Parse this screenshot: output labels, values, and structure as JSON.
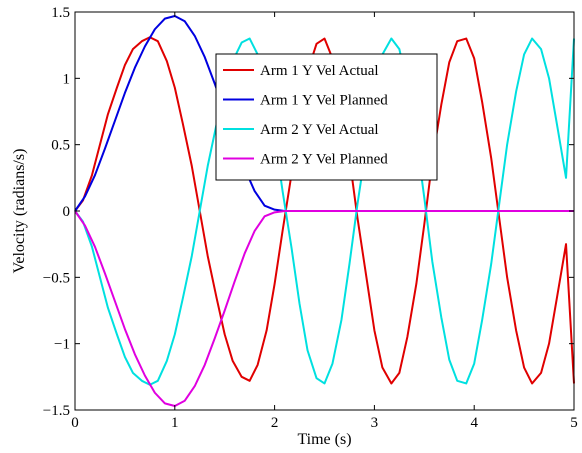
{
  "chart_data": {
    "type": "line",
    "xlabel": "Time (s)",
    "ylabel": "Velocity (radians/s)",
    "xlim": [
      0,
      5
    ],
    "ylim": [
      -1.5,
      1.5
    ],
    "x_ticks": [
      {
        "value": 0,
        "label": "0"
      },
      {
        "value": 1,
        "label": "1"
      },
      {
        "value": 2,
        "label": "2"
      },
      {
        "value": 3,
        "label": "3"
      },
      {
        "value": 4,
        "label": "4"
      },
      {
        "value": 5,
        "label": "5"
      }
    ],
    "y_ticks": [
      {
        "value": -1.5,
        "label": "−1.5"
      },
      {
        "value": -1,
        "label": "−1"
      },
      {
        "value": -0.5,
        "label": "−0.5"
      },
      {
        "value": 0,
        "label": "0"
      },
      {
        "value": 0.5,
        "label": "0.5"
      },
      {
        "value": 1,
        "label": "1"
      },
      {
        "value": 1.5,
        "label": "1.5"
      }
    ],
    "grid": false,
    "legend_position": "top-right",
    "series": [
      {
        "name": "Arm 1 Y Vel Actual",
        "color": "#e00000",
        "x": [
          0,
          0.08,
          0.17,
          0.25,
          0.33,
          0.42,
          0.5,
          0.58,
          0.67,
          0.75,
          0.83,
          0.92,
          1.0,
          1.08,
          1.17,
          1.25,
          1.33,
          1.42,
          1.5,
          1.58,
          1.67,
          1.75,
          1.83,
          1.92,
          2.0,
          2.08,
          2.17,
          2.25,
          2.33,
          2.42,
          2.5,
          2.58,
          2.67,
          2.75,
          2.83,
          2.92,
          3.0,
          3.08,
          3.17,
          3.25,
          3.33,
          3.42,
          3.5,
          3.58,
          3.67,
          3.75,
          3.83,
          3.92,
          4.0,
          4.08,
          4.17,
          4.25,
          4.33,
          4.42,
          4.5,
          4.58,
          4.67,
          4.75,
          4.83,
          4.92,
          5.0
        ],
        "y": [
          0,
          0.08,
          0.27,
          0.5,
          0.73,
          0.93,
          1.1,
          1.22,
          1.28,
          1.31,
          1.28,
          1.13,
          0.93,
          0.66,
          0.34,
          0.0,
          -0.34,
          -0.66,
          -0.93,
          -1.13,
          -1.25,
          -1.28,
          -1.16,
          -0.9,
          -0.55,
          -0.15,
          0.28,
          0.7,
          1.05,
          1.26,
          1.3,
          1.15,
          0.82,
          0.4,
          -0.05,
          -0.5,
          -0.9,
          -1.18,
          -1.3,
          -1.22,
          -0.95,
          -0.55,
          -0.1,
          0.38,
          0.8,
          1.12,
          1.28,
          1.3,
          1.15,
          0.82,
          0.4,
          -0.05,
          -0.5,
          -0.9,
          -1.18,
          -1.3,
          -1.22,
          -1.0,
          -0.65,
          -0.25,
          -1.3
        ]
      },
      {
        "name": "Arm 1 Y Vel Planned",
        "color": "#0000e0",
        "x": [
          0,
          0.1,
          0.2,
          0.3,
          0.4,
          0.5,
          0.6,
          0.7,
          0.8,
          0.9,
          1.0,
          1.1,
          1.2,
          1.3,
          1.4,
          1.5,
          1.6,
          1.7,
          1.8,
          1.9,
          2.0,
          2.1,
          2.5,
          3.0,
          3.5,
          4.0,
          4.5,
          5.0
        ],
        "y": [
          0,
          0.11,
          0.27,
          0.47,
          0.68,
          0.89,
          1.08,
          1.24,
          1.37,
          1.45,
          1.47,
          1.43,
          1.32,
          1.16,
          0.96,
          0.75,
          0.53,
          0.32,
          0.15,
          0.04,
          0.01,
          0,
          0,
          0,
          0,
          0,
          0,
          0
        ]
      },
      {
        "name": "Arm 2 Y Vel Actual",
        "color": "#00e0e0",
        "x": [
          0,
          0.08,
          0.17,
          0.25,
          0.33,
          0.42,
          0.5,
          0.58,
          0.67,
          0.75,
          0.83,
          0.92,
          1.0,
          1.08,
          1.17,
          1.25,
          1.33,
          1.42,
          1.5,
          1.58,
          1.67,
          1.75,
          1.83,
          1.92,
          2.0,
          2.08,
          2.17,
          2.25,
          2.33,
          2.42,
          2.5,
          2.58,
          2.67,
          2.75,
          2.83,
          2.92,
          3.0,
          3.08,
          3.17,
          3.25,
          3.33,
          3.42,
          3.5,
          3.58,
          3.67,
          3.75,
          3.83,
          3.92,
          4.0,
          4.08,
          4.17,
          4.25,
          4.33,
          4.42,
          4.5,
          4.58,
          4.67,
          4.75,
          4.83,
          4.92,
          5.0
        ],
        "y": [
          0,
          -0.08,
          -0.27,
          -0.5,
          -0.73,
          -0.93,
          -1.1,
          -1.22,
          -1.28,
          -1.31,
          -1.28,
          -1.13,
          -0.93,
          -0.66,
          -0.34,
          0.0,
          0.34,
          0.66,
          0.93,
          1.13,
          1.27,
          1.3,
          1.18,
          0.92,
          0.57,
          0.15,
          -0.28,
          -0.7,
          -1.05,
          -1.26,
          -1.3,
          -1.15,
          -0.82,
          -0.4,
          0.05,
          0.5,
          0.9,
          1.18,
          1.3,
          1.22,
          0.95,
          0.55,
          0.1,
          -0.38,
          -0.8,
          -1.12,
          -1.28,
          -1.3,
          -1.15,
          -0.82,
          -0.4,
          0.05,
          0.5,
          0.9,
          1.18,
          1.3,
          1.22,
          1.0,
          0.65,
          0.25,
          1.3
        ]
      },
      {
        "name": "Arm 2 Y Vel Planned",
        "color": "#e000e0",
        "x": [
          0,
          0.1,
          0.2,
          0.3,
          0.4,
          0.5,
          0.6,
          0.7,
          0.8,
          0.9,
          1.0,
          1.1,
          1.2,
          1.3,
          1.4,
          1.5,
          1.6,
          1.7,
          1.8,
          1.9,
          2.0,
          2.1,
          2.5,
          3.0,
          3.5,
          4.0,
          4.5,
          5.0
        ],
        "y": [
          0,
          -0.11,
          -0.27,
          -0.47,
          -0.68,
          -0.89,
          -1.08,
          -1.24,
          -1.37,
          -1.45,
          -1.47,
          -1.43,
          -1.32,
          -1.16,
          -0.96,
          -0.75,
          -0.53,
          -0.32,
          -0.15,
          -0.04,
          -0.01,
          0,
          0,
          0,
          0,
          0,
          0,
          0
        ]
      }
    ]
  }
}
